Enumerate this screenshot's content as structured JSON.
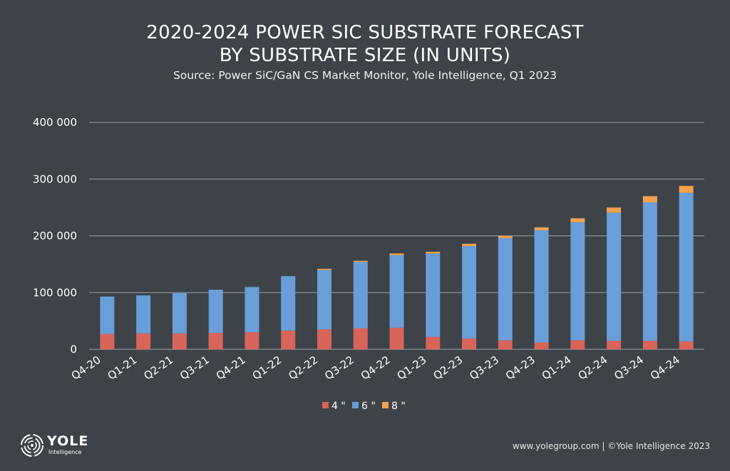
{
  "title_line1": "2020-2024 POWER SIC SUBSTRATE FORECAST",
  "title_line2": "BY SUBSTRATE SIZE (IN UNITS)",
  "subtitle": "Source: Power SiC/GaN CS Market Monitor, Yole Intelligence, Q1 2023",
  "logo": {
    "name": "YOLE",
    "sub": "Intelligence"
  },
  "footer": "www.yolegroup.com | ©Yole Intelligence 2023",
  "chart_data": {
    "type": "bar",
    "stacked": true,
    "categories": [
      "Q4-20",
      "Q1-21",
      "Q2-21",
      "Q3-21",
      "Q4-21",
      "Q1-22",
      "Q2-22",
      "Q3-22",
      "Q4-22",
      "Q1-23",
      "Q2-23",
      "Q3-23",
      "Q4-23",
      "Q1-24",
      "Q2-24",
      "Q3-24",
      "Q4-24"
    ],
    "series": [
      {
        "name": "4 \"",
        "color": "#d9645a",
        "values": [
          27000,
          28000,
          28000,
          29000,
          30000,
          33000,
          35000,
          37000,
          38000,
          22000,
          19000,
          16000,
          12000,
          16000,
          15000,
          15000,
          14000
        ]
      },
      {
        "name": "6 \"",
        "color": "#6a9ed8",
        "values": [
          66000,
          67000,
          71000,
          76000,
          80000,
          96000,
          105000,
          117000,
          128000,
          147000,
          163000,
          180000,
          198000,
          208000,
          226000,
          244000,
          262000
        ]
      },
      {
        "name": "8 \"",
        "color": "#f2a250",
        "values": [
          0,
          0,
          0,
          0,
          0,
          0,
          2000,
          2000,
          3000,
          3000,
          4000,
          4000,
          5000,
          7000,
          9000,
          11000,
          12000
        ]
      }
    ],
    "yticks": [
      0,
      100000,
      200000,
      300000,
      400000
    ],
    "ytick_labels": [
      "0",
      "100 000",
      "200 000",
      "300 000",
      "400 000"
    ],
    "ylim": [
      0,
      400000
    ],
    "legend": "bottom-center",
    "grid": true
  }
}
